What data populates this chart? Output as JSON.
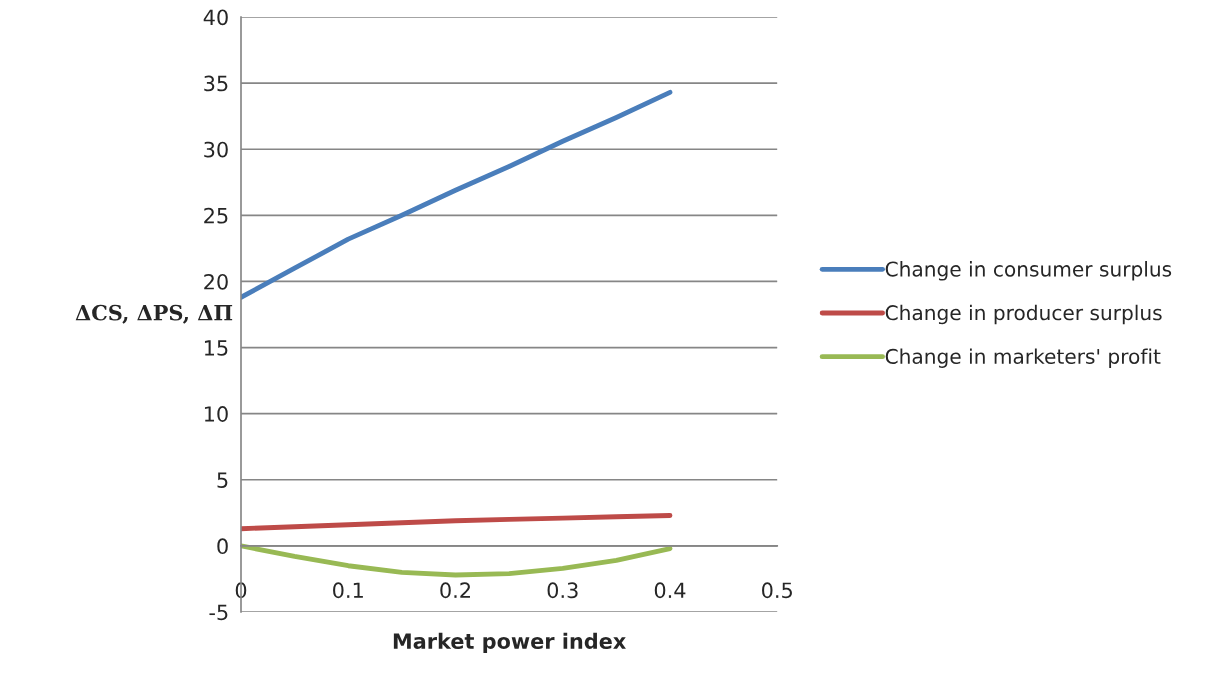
{
  "chart_data": {
    "type": "line",
    "xlabel": "Market power index",
    "ylabel": "ΔCS, ΔPS, ΔΠ",
    "x": [
      0,
      0.05,
      0.1,
      0.15,
      0.2,
      0.25,
      0.3,
      0.35,
      0.4
    ],
    "series": [
      {
        "name": "Change in consumer surplus",
        "color": "#4a7ebb",
        "values": [
          18.8,
          21.0,
          23.2,
          25.0,
          26.9,
          28.7,
          30.6,
          32.4,
          34.3
        ]
      },
      {
        "name": "Change in producer surplus",
        "color": "#be4b48",
        "values": [
          1.3,
          1.45,
          1.6,
          1.75,
          1.9,
          2.0,
          2.1,
          2.2,
          2.3
        ]
      },
      {
        "name": "Change in marketers' profit",
        "color": "#98b954",
        "values": [
          0,
          -0.8,
          -1.5,
          -2.0,
          -2.2,
          -2.1,
          -1.7,
          -1.1,
          -0.2
        ]
      }
    ],
    "xlim": [
      0,
      0.5
    ],
    "xticks": [
      0,
      0.1,
      0.2,
      0.3,
      0.4,
      0.5
    ],
    "ylim": [
      -5,
      40
    ],
    "yticks": [
      -5,
      0,
      5,
      10,
      15,
      20,
      25,
      30,
      35,
      40
    ],
    "grid": "y",
    "legend": "right",
    "marker": "none",
    "line_style": "solid"
  }
}
